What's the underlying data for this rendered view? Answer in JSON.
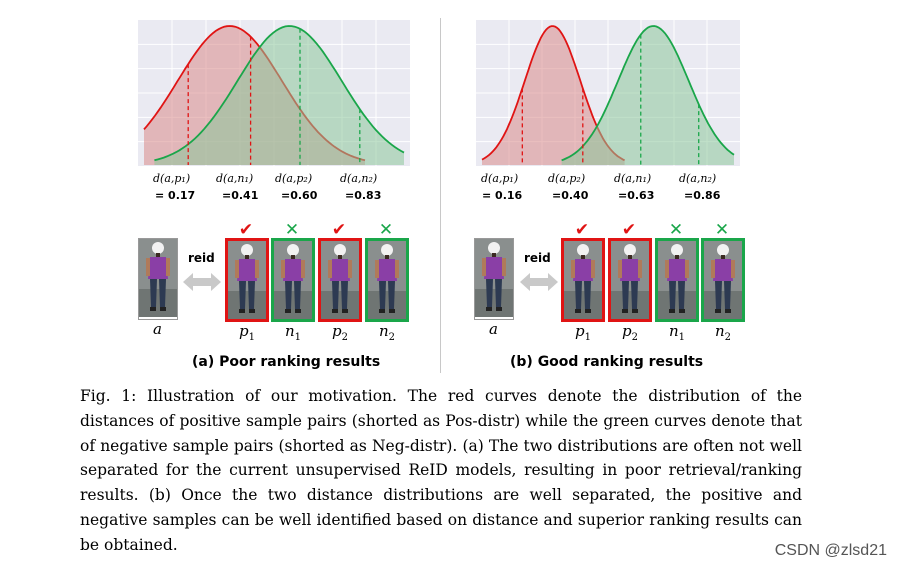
{
  "panel_a": {
    "subcaption": "(a)  Poor ranking results",
    "labels": [
      {
        "text": "d(a,p₁)",
        "value": "= 0.17"
      },
      {
        "text": "d(a,n₁)",
        "value": "=0.41"
      },
      {
        "text": "d(a,p₂)",
        "value": "=0.60"
      },
      {
        "text": "d(a,n₂)",
        "value": "=0.83"
      }
    ],
    "query_name": "a",
    "reid_label": "reid",
    "candidates": [
      {
        "name": "p",
        "sub": "1",
        "type": "pos",
        "mark": "✔"
      },
      {
        "name": "n",
        "sub": "1",
        "type": "neg",
        "mark": "✕"
      },
      {
        "name": "p",
        "sub": "2",
        "type": "pos",
        "mark": "✔"
      },
      {
        "name": "n",
        "sub": "2",
        "type": "neg",
        "mark": "✕"
      }
    ]
  },
  "panel_b": {
    "subcaption": "(b)  Good ranking results",
    "labels": [
      {
        "text": "d(a,p₁)",
        "value": "= 0.16"
      },
      {
        "text": "d(a,p₂)",
        "value": "=0.40"
      },
      {
        "text": "d(a,n₁)",
        "value": "=0.63"
      },
      {
        "text": "d(a,n₂)",
        "value": "=0.86"
      }
    ],
    "query_name": "a",
    "reid_label": "reid",
    "candidates": [
      {
        "name": "p",
        "sub": "1",
        "type": "pos",
        "mark": "✔"
      },
      {
        "name": "p",
        "sub": "2",
        "type": "pos",
        "mark": "✔"
      },
      {
        "name": "n",
        "sub": "1",
        "type": "neg",
        "mark": "✕"
      },
      {
        "name": "n",
        "sub": "2",
        "type": "neg",
        "mark": "✕"
      }
    ]
  },
  "caption": "Fig. 1: Illustration of our motivation. The red curves denote the distribution of the distances of positive sample pairs (shorted as Pos-distr) while the green curves denote that of negative sample pairs (shorted as Neg-distr). (a) The two distributions are often not well separated for the current unsupervised ReID models, resulting in poor retrieval/ranking results. (b) Once the two distance distributions are well separated, the positive and negative samples can be well identified based on distance and superior ranking results can be obtained.",
  "watermark": "CSDN @zlsd21",
  "colors": {
    "pos": "#e01414",
    "neg": "#1aa64a",
    "pos_fill": "#d98a8a",
    "neg_fill": "#8cc79a"
  },
  "chart_data": [
    {
      "type": "area",
      "xlim": [
        0,
        1
      ],
      "grid": true,
      "series": [
        {
          "name": "",
          "shape": "gaussian",
          "mean": 0.33,
          "std": 0.2
        },
        {
          "name": "",
          "shape": "gaussian",
          "mean": 0.56,
          "std": 0.2
        }
      ],
      "markers": [
        0.17,
        0.41,
        0.6,
        0.83
      ]
    },
    {
      "type": "area",
      "xlim": [
        0,
        1
      ],
      "grid": true,
      "series": [
        {
          "name": "",
          "shape": "gaussian",
          "mean": 0.28,
          "std": 0.11
        },
        {
          "name": "",
          "shape": "gaussian",
          "mean": 0.68,
          "std": 0.14
        }
      ],
      "markers": [
        0.16,
        0.4,
        0.63,
        0.86
      ]
    }
  ]
}
